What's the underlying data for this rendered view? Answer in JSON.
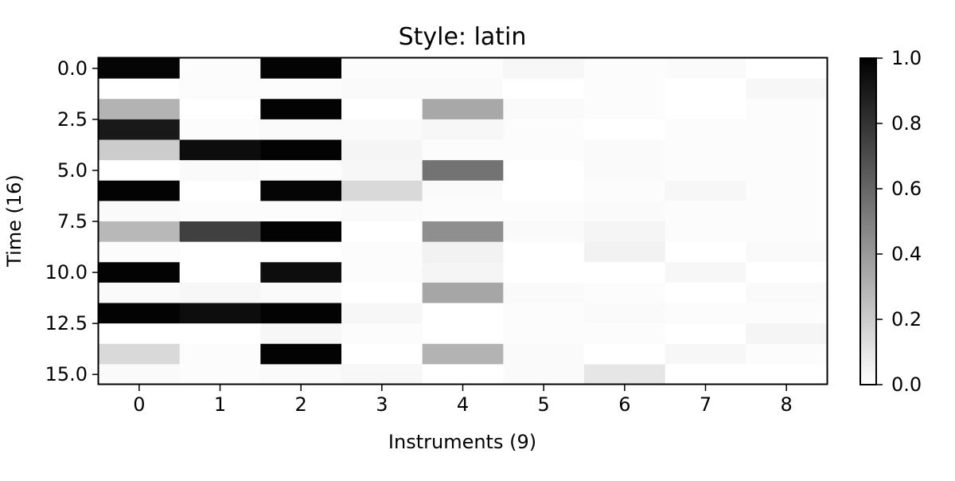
{
  "chart_data": {
    "type": "heatmap",
    "title": "Style: latin",
    "xlabel": "Instruments (9)",
    "ylabel": "Time (16)",
    "x_ticks": [
      "0",
      "1",
      "2",
      "3",
      "4",
      "5",
      "6",
      "7",
      "8"
    ],
    "y_ticks": [
      "0.0",
      "2.5",
      "5.0",
      "7.5",
      "10.0",
      "12.5",
      "15.0"
    ],
    "y_tick_values": [
      0,
      2.5,
      5,
      7.5,
      10,
      12.5,
      15
    ],
    "colorbar": {
      "min": 0,
      "max": 1,
      "ticks": [
        "0.0",
        "0.2",
        "0.4",
        "0.6",
        "0.8",
        "1.0"
      ],
      "tick_values": [
        0,
        0.2,
        0.4,
        0.6,
        0.8,
        1.0
      ],
      "colormap": "Greys (white = 0.0, black = 1.0)"
    },
    "rows": 16,
    "cols": 9,
    "values": [
      [
        0.98,
        0.01,
        0.99,
        0.01,
        0.01,
        0.03,
        0.01,
        0.02,
        0.0
      ],
      [
        0.0,
        0.01,
        0.01,
        0.02,
        0.02,
        0.0,
        0.01,
        0.0,
        0.03
      ],
      [
        0.3,
        0.0,
        0.99,
        0.0,
        0.34,
        0.02,
        0.01,
        0.0,
        0.01
      ],
      [
        0.9,
        0.01,
        0.02,
        0.02,
        0.03,
        0.01,
        0.0,
        0.01,
        0.01
      ],
      [
        0.2,
        0.95,
        0.99,
        0.04,
        0.01,
        0.01,
        0.02,
        0.01,
        0.01
      ],
      [
        0.0,
        0.02,
        0.01,
        0.03,
        0.55,
        0.0,
        0.02,
        0.01,
        0.01
      ],
      [
        0.99,
        0.0,
        0.98,
        0.15,
        0.02,
        0.0,
        0.01,
        0.03,
        0.01
      ],
      [
        0.02,
        0.01,
        0.01,
        0.02,
        0.01,
        0.01,
        0.02,
        0.01,
        0.01
      ],
      [
        0.28,
        0.75,
        0.99,
        0.0,
        0.44,
        0.02,
        0.04,
        0.01,
        0.01
      ],
      [
        0.01,
        0.0,
        0.0,
        0.01,
        0.05,
        0.0,
        0.05,
        0.0,
        0.02
      ],
      [
        0.99,
        0.0,
        0.95,
        0.01,
        0.04,
        0.0,
        0.0,
        0.03,
        0.0
      ],
      [
        0.02,
        0.03,
        0.02,
        0.0,
        0.35,
        0.02,
        0.01,
        0.0,
        0.02
      ],
      [
        0.99,
        0.95,
        0.99,
        0.03,
        0.0,
        0.01,
        0.02,
        0.01,
        0.01
      ],
      [
        0.0,
        0.0,
        0.03,
        0.01,
        0.0,
        0.01,
        0.01,
        0.0,
        0.04
      ],
      [
        0.15,
        0.01,
        0.99,
        0.0,
        0.3,
        0.02,
        0.0,
        0.03,
        0.01
      ],
      [
        0.02,
        0.01,
        0.02,
        0.03,
        0.0,
        0.02,
        0.1,
        0.0,
        0.0
      ]
    ]
  }
}
